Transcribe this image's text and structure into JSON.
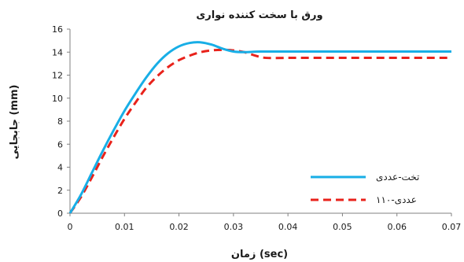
{
  "chart_data": {
    "type": "line",
    "title": "ورق با سخت کننده نواری",
    "xlabel": "زمان (sec)",
    "ylabel": "جابجایی (mm)",
    "xlim": [
      0,
      0.07
    ],
    "ylim": [
      0,
      16
    ],
    "x_ticks": [
      "0",
      "0.01",
      "0.02",
      "0.03",
      "0.04",
      "0.05",
      "0.06",
      "0.07"
    ],
    "y_ticks": [
      "0",
      "2",
      "4",
      "6",
      "8",
      "10",
      "12",
      "14",
      "16"
    ],
    "grid": false,
    "legend_position": "bottom-right",
    "series": [
      {
        "name": "تخت-عددی",
        "color": "#18aee6",
        "style": "solid",
        "x": [
          0,
          0.002,
          0.004,
          0.006,
          0.008,
          0.01,
          0.012,
          0.014,
          0.016,
          0.018,
          0.02,
          0.022,
          0.024,
          0.026,
          0.028,
          0.03,
          0.032,
          0.035,
          0.04,
          0.05,
          0.06,
          0.07
        ],
        "y": [
          0,
          1.6,
          3.5,
          5.4,
          7.2,
          8.9,
          10.4,
          11.8,
          13.0,
          13.9,
          14.5,
          14.8,
          14.85,
          14.65,
          14.3,
          14.05,
          14.0,
          14.05,
          14.05,
          14.05,
          14.05,
          14.05
        ]
      },
      {
        "name": "۱۱۰-عددی",
        "color": "#e8221b",
        "style": "dashed",
        "x": [
          0,
          0.002,
          0.004,
          0.006,
          0.008,
          0.01,
          0.012,
          0.014,
          0.016,
          0.018,
          0.02,
          0.022,
          0.024,
          0.026,
          0.028,
          0.03,
          0.032,
          0.034,
          0.036,
          0.04,
          0.05,
          0.06,
          0.07
        ],
        "y": [
          0,
          1.4,
          3.1,
          4.9,
          6.6,
          8.2,
          9.6,
          10.9,
          11.9,
          12.7,
          13.3,
          13.7,
          14.0,
          14.15,
          14.2,
          14.15,
          14.0,
          13.7,
          13.5,
          13.5,
          13.5,
          13.5,
          13.5
        ]
      }
    ]
  }
}
